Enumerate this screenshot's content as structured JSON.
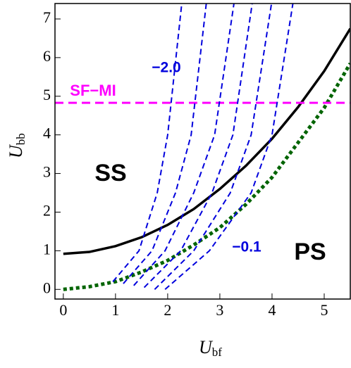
{
  "chart_data": {
    "type": "line",
    "x_label": {
      "main": "U",
      "sub": "bf"
    },
    "y_label": {
      "main": "U",
      "sub": "bb"
    },
    "xlim": [
      -0.16,
      5.5
    ],
    "ylim": [
      -0.25,
      7.4
    ],
    "xticks": [
      0,
      1,
      2,
      3,
      4,
      5
    ],
    "yticks": [
      0,
      1,
      2,
      3,
      4,
      5,
      6,
      7
    ],
    "series": [
      {
        "color": "#000000",
        "style": "solid",
        "x": [
          0,
          0.5,
          1,
          1.5,
          2,
          2.5,
          3,
          3.5,
          4,
          4.5,
          5,
          5.5
        ],
        "values": [
          0.92,
          0.97,
          1.12,
          1.35,
          1.67,
          2.08,
          2.6,
          3.2,
          3.9,
          4.72,
          5.65,
          6.75
        ]
      },
      {
        "color": "#006400",
        "style": "dotted",
        "x": [
          0,
          0.5,
          1,
          1.5,
          2,
          2.5,
          3,
          3.5,
          4,
          4.5,
          5,
          5.5
        ],
        "values": [
          0,
          0.07,
          0.2,
          0.45,
          0.75,
          1.15,
          1.6,
          2.2,
          2.9,
          3.8,
          4.7,
          5.85
        ]
      },
      {
        "color": "#ff00ff",
        "style": "dashed",
        "x": [
          -0.16,
          5.5
        ],
        "values": [
          4.83,
          4.83
        ]
      },
      {
        "color": "#0000dd",
        "style": "dashed",
        "x": [
          0.95,
          1.45,
          1.8,
          2.0,
          2.27
        ],
        "values": [
          0.2,
          1,
          2.5,
          4,
          7.4
        ]
      },
      {
        "color": "#0000dd",
        "style": "dashed",
        "x": [
          1.15,
          1.7,
          2.15,
          2.45,
          2.74
        ],
        "values": [
          0.15,
          1,
          2.5,
          4,
          7.4
        ]
      },
      {
        "color": "#0000dd",
        "style": "dashed",
        "x": [
          1.35,
          1.95,
          2.5,
          2.9,
          3.27
        ],
        "values": [
          0.1,
          1,
          2.5,
          4,
          7.4
        ]
      },
      {
        "color": "#0000dd",
        "style": "dashed",
        "x": [
          1.55,
          2.25,
          2.85,
          3.25,
          3.62
        ],
        "values": [
          0.05,
          1,
          2.5,
          4,
          7.4
        ]
      },
      {
        "color": "#0000dd",
        "style": "dashed",
        "x": [
          1.75,
          2.5,
          3.2,
          3.6,
          3.99
        ],
        "values": [
          0,
          1,
          2.5,
          4,
          7.4
        ]
      },
      {
        "color": "#0000dd",
        "style": "dashed",
        "x": [
          1.95,
          2.8,
          3.6,
          4.0,
          4.4
        ],
        "values": [
          0,
          1,
          2.5,
          4,
          7.4
        ]
      }
    ],
    "annotations": [
      {
        "text": "SF−MI",
        "color": "#ff00ff"
      },
      {
        "text": "−2.0",
        "color": "#0000dd"
      },
      {
        "text": "−0.1",
        "color": "#0000dd"
      },
      {
        "text": "SS",
        "color": "#000000"
      },
      {
        "text": "PS",
        "color": "#000000"
      }
    ]
  }
}
